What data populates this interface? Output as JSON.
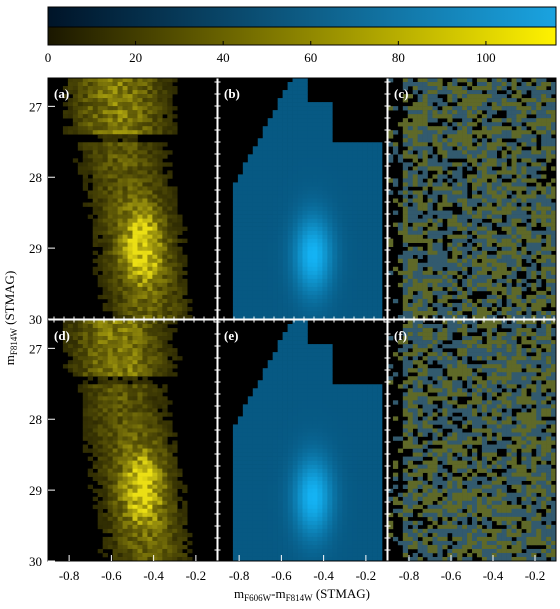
{
  "chart_data": {
    "type": "heatmap",
    "colorbar": {
      "ticks": [
        0,
        20,
        40,
        60,
        80,
        100
      ],
      "range": [
        0,
        116
      ],
      "colors": {
        "blue_low": "#001428",
        "blue_high": "#1aa3e0",
        "yellow_low": "#1a1700",
        "yellow_high": "#fff200"
      }
    },
    "xlabel": {
      "base": "m",
      "sub1": "F606W",
      "mid": "-m",
      "sub2": "F814W",
      "tail": " (STMAG)"
    },
    "ylabel": {
      "base": "m",
      "sub": "F814W",
      "tail": " (STMAG)"
    },
    "x_ticks": [
      "-0.8",
      "-0.6",
      "-0.4",
      "-0.2"
    ],
    "x_tick_values": [
      -0.8,
      -0.6,
      -0.4,
      -0.2
    ],
    "y_ticks": [
      "27",
      "28",
      "29",
      "30"
    ],
    "y_tick_values": [
      27,
      28,
      29,
      30
    ],
    "xlim": [
      -0.9,
      -0.1
    ],
    "ylim": [
      30,
      26.6
    ],
    "panels": [
      {
        "label": "(a)",
        "row": 0,
        "col": 0,
        "kind": "observed",
        "colormap": "yellow"
      },
      {
        "label": "(b)",
        "row": 0,
        "col": 1,
        "kind": "model",
        "colormap": "blue"
      },
      {
        "label": "(c)",
        "row": 0,
        "col": 2,
        "kind": "residual",
        "colormap": "mixed"
      },
      {
        "label": "(d)",
        "row": 1,
        "col": 0,
        "kind": "observed",
        "colormap": "yellow"
      },
      {
        "label": "(e)",
        "row": 1,
        "col": 1,
        "kind": "model",
        "colormap": "blue"
      },
      {
        "label": "(f)",
        "row": 1,
        "col": 2,
        "kind": "residual",
        "colormap": "mixed"
      }
    ]
  }
}
